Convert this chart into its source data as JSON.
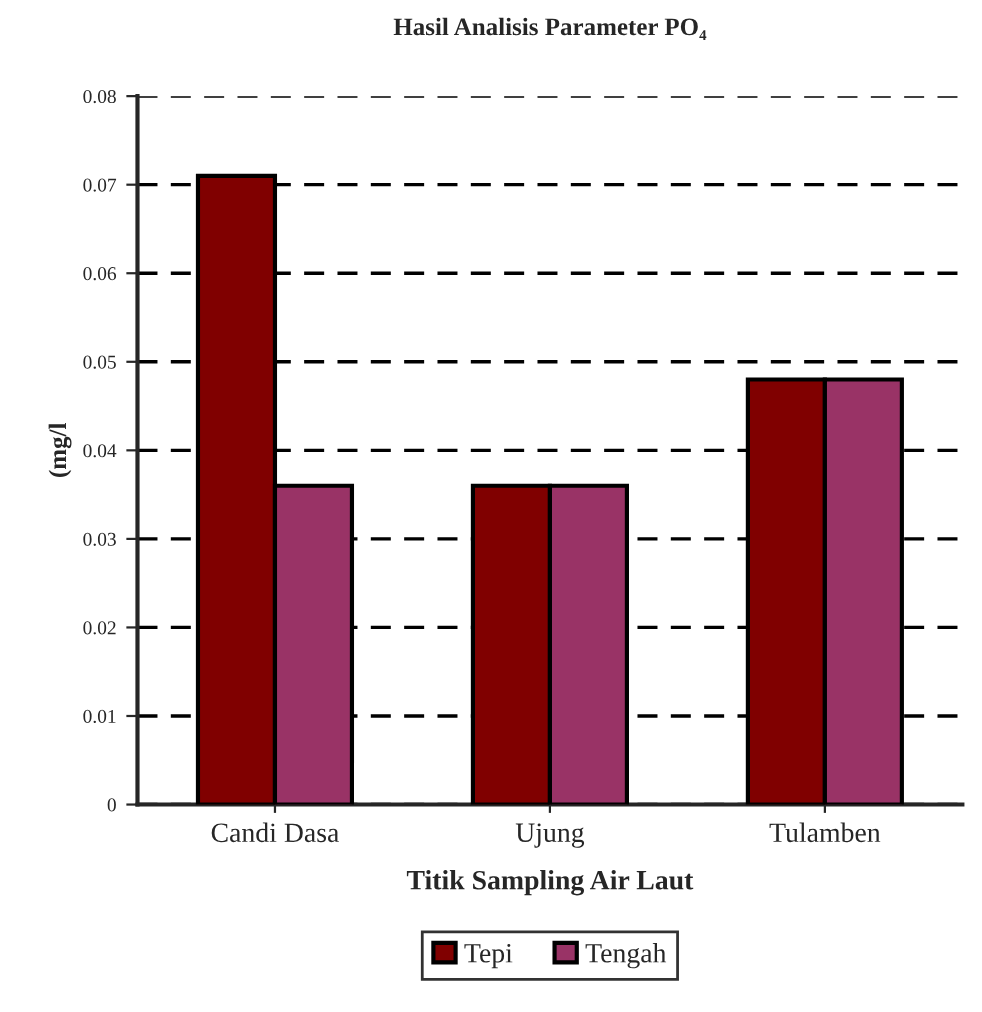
{
  "chart_data": {
    "type": "bar",
    "title": "Hasil Analisis Parameter PO₄",
    "xlabel": "Titik Sampling Air Laut",
    "ylabel": "(mg/l",
    "categories": [
      "Candi Dasa",
      "Ujung",
      "Tulamben"
    ],
    "series": [
      {
        "name": "Tepi",
        "color": "#800000",
        "values": [
          0.071,
          0.036,
          0.048
        ]
      },
      {
        "name": "Tengah",
        "color": "#993366",
        "values": [
          0.036,
          0.036,
          0.048
        ]
      }
    ],
    "ylim": [
      0,
      0.08
    ],
    "yticks": [
      0,
      0.01,
      0.02,
      0.03,
      0.04,
      0.05,
      0.06,
      0.07,
      0.08
    ],
    "grid": "y",
    "legend": "bottom"
  }
}
